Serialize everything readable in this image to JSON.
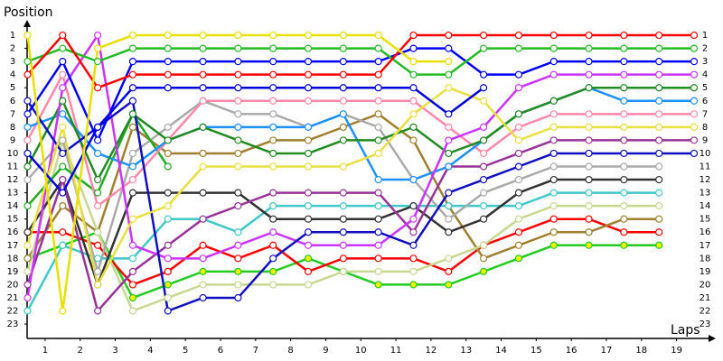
{
  "chart_data": {
    "type": "line",
    "y_axis_label": "Position",
    "x_axis_label": "Laps",
    "x": [
      0,
      1,
      2,
      3,
      4,
      5,
      6,
      7,
      8,
      9,
      10,
      11,
      12,
      13,
      14,
      15,
      16,
      17,
      18,
      19
    ],
    "xlim": [
      0,
      19
    ],
    "xticks": [
      {
        "value": 0.5,
        "label": "1"
      },
      {
        "value": 1.5,
        "label": "2"
      },
      {
        "value": 2.5,
        "label": "3"
      },
      {
        "value": 3.5,
        "label": "4"
      },
      {
        "value": 4.5,
        "label": "5"
      },
      {
        "value": 5.5,
        "label": "6"
      },
      {
        "value": 6.5,
        "label": "7"
      },
      {
        "value": 7.5,
        "label": "8"
      },
      {
        "value": 8.5,
        "label": "9"
      },
      {
        "value": 9.5,
        "label": "10"
      },
      {
        "value": 10.5,
        "label": "11"
      },
      {
        "value": 11.5,
        "label": "12"
      },
      {
        "value": 12.5,
        "label": "13"
      },
      {
        "value": 13.5,
        "label": "14"
      },
      {
        "value": 14.5,
        "label": "15"
      },
      {
        "value": 15.5,
        "label": "16"
      },
      {
        "value": 16.5,
        "label": "17"
      },
      {
        "value": 17.5,
        "label": "18"
      },
      {
        "value": 18.5,
        "label": "19"
      }
    ],
    "ylim": [
      0,
      24
    ],
    "y_inverted": true,
    "yticks": [
      1,
      2,
      3,
      4,
      5,
      6,
      7,
      8,
      9,
      10,
      11,
      12,
      13,
      14,
      15,
      16,
      17,
      18,
      19,
      20,
      21,
      22,
      23
    ],
    "series": [
      {
        "color": "#22cc22",
        "marker_fill": "#f0f000",
        "values": [
          18,
          17,
          16,
          21,
          20,
          19,
          19,
          19,
          18,
          19,
          20,
          20,
          20,
          19,
          18,
          17,
          17,
          17,
          17,
          null
        ]
      },
      {
        "color": "#ff0000",
        "values": [
          16,
          16,
          17,
          20,
          19,
          17,
          18,
          17,
          19,
          18,
          18,
          18,
          19,
          17,
          16,
          15,
          15,
          16,
          16,
          null
        ]
      },
      {
        "color": "#a08030",
        "values": [
          18,
          14,
          16,
          8,
          10,
          10,
          10,
          9,
          9,
          8,
          7,
          9,
          14,
          18,
          17,
          16,
          16,
          15,
          15,
          null
        ]
      },
      {
        "color": "#c8d890",
        "values": [
          19,
          9,
          16,
          22,
          21,
          20,
          20,
          20,
          20,
          19,
          19,
          19,
          18,
          17,
          15,
          14,
          14,
          14,
          14,
          null
        ]
      },
      {
        "color": "#40c8c8",
        "values": [
          22,
          17,
          18,
          18,
          15,
          15,
          16,
          14,
          14,
          14,
          14,
          14,
          14,
          14,
          14,
          13,
          13,
          13,
          13,
          null
        ]
      },
      {
        "color": "#333333",
        "values": [
          16,
          12,
          20,
          13,
          13,
          13,
          13,
          15,
          15,
          15,
          15,
          14,
          16,
          15,
          13,
          12,
          12,
          12,
          12,
          null
        ]
      },
      {
        "color": "#aaaaaa",
        "values": [
          12,
          9,
          19,
          10,
          8,
          6,
          7,
          7,
          8,
          7,
          8,
          12,
          15,
          13,
          12,
          11,
          11,
          11,
          11,
          null
        ]
      },
      {
        "color": "#22aa22",
        "values": [
          14,
          11,
          13,
          7,
          11,
          null,
          null,
          null,
          null,
          null,
          null,
          null,
          null,
          null,
          null,
          null,
          null,
          null,
          null,
          null
        ]
      },
      {
        "color": "#993399",
        "values": [
          20,
          12,
          22,
          19,
          17,
          15,
          14,
          13,
          13,
          13,
          13,
          16,
          11,
          11,
          10,
          9,
          9,
          9,
          9,
          9
        ]
      },
      {
        "color": "#ff88aa",
        "values": [
          9,
          4,
          14,
          12,
          9,
          6,
          6,
          6,
          6,
          6,
          6,
          6,
          8,
          10,
          8,
          7,
          7,
          7,
          7,
          7
        ]
      },
      {
        "color": "#1e90ff",
        "values": [
          8,
          7,
          10,
          11,
          9,
          8,
          8,
          8,
          8,
          7,
          12,
          12,
          11,
          9,
          7,
          6,
          5,
          6,
          6,
          6
        ]
      },
      {
        "color": "#228b22",
        "values": [
          11,
          6,
          12,
          7,
          9,
          8,
          9,
          10,
          10,
          9,
          9,
          8,
          10,
          9,
          7,
          6,
          5,
          5,
          5,
          5
        ]
      },
      {
        "color": "#cc33ff",
        "values": [
          21,
          5,
          1,
          17,
          18,
          18,
          17,
          16,
          17,
          17,
          17,
          15,
          9,
          8,
          5,
          4,
          4,
          4,
          4,
          4
        ]
      },
      {
        "color": "#1010c0",
        "values": [
          6,
          10,
          8,
          6,
          22,
          21,
          21,
          18,
          16,
          16,
          16,
          17,
          13,
          12,
          11,
          10,
          10,
          10,
          10,
          10
        ]
      },
      {
        "color": "#e8e040",
        "values": [
          17,
          8,
          20,
          15,
          14,
          11,
          11,
          11,
          11,
          11,
          10,
          7,
          5,
          6,
          9,
          8,
          8,
          8,
          8,
          8
        ]
      },
      {
        "color": "#0000dd",
        "values": [
          10,
          13,
          8,
          5,
          5,
          5,
          5,
          5,
          5,
          5,
          5,
          5,
          7,
          5,
          null,
          null,
          null,
          null,
          null,
          null
        ]
      },
      {
        "color": "#0000ff",
        "values": [
          7,
          3,
          9,
          3,
          3,
          3,
          3,
          3,
          3,
          3,
          3,
          2,
          2,
          4,
          4,
          3,
          3,
          3,
          3,
          3
        ]
      },
      {
        "color": "#22bb22",
        "values": [
          3,
          2,
          3,
          2,
          2,
          2,
          2,
          2,
          2,
          2,
          2,
          4,
          4,
          2,
          2,
          2,
          2,
          2,
          2,
          2
        ]
      },
      {
        "color": "#ff0000",
        "values": [
          4,
          1,
          5,
          4,
          4,
          4,
          4,
          4,
          4,
          4,
          4,
          1,
          1,
          1,
          1,
          1,
          1,
          1,
          1,
          1
        ]
      },
      {
        "color": "#e8e000",
        "values": [
          1,
          22,
          2,
          1,
          1,
          1,
          1,
          1,
          1,
          1,
          1,
          3,
          3,
          null,
          null,
          null,
          null,
          null,
          null,
          null
        ]
      }
    ]
  }
}
